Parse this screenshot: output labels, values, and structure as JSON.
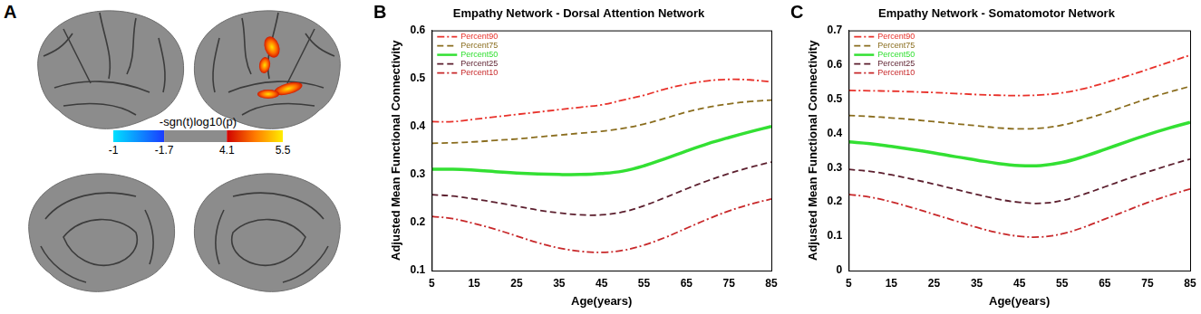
{
  "panel_labels": [
    "A",
    "B",
    "C"
  ],
  "chart_data": [
    {
      "type": "brain_map",
      "colorbar_label": "-sgn(t)log10(p)",
      "colorbar_ticks": [
        -1,
        -1.7,
        4.1,
        5.5
      ]
    },
    {
      "type": "line",
      "title": "Empathy Network - Dorsal Attention Network",
      "x_label": "Age(years)",
      "y_label": "Adjusted Mean Functional Connectivity",
      "x": [
        5,
        10,
        15,
        20,
        25,
        30,
        35,
        40,
        45,
        50,
        55,
        60,
        65,
        70,
        75,
        80,
        85
      ],
      "xlim": [
        5,
        85
      ],
      "xticks": [
        5,
        15,
        25,
        35,
        45,
        55,
        65,
        75,
        85
      ],
      "ylim": [
        0.1,
        0.6
      ],
      "yticks": [
        0.1,
        0.2,
        0.3,
        0.4,
        0.5,
        0.6
      ],
      "grid": false,
      "legend": "upper left",
      "series": [
        {
          "name": "Percent90",
          "color": "#e8312a",
          "line_style": "dashdot",
          "values": [
            0.41,
            0.41,
            0.415,
            0.42,
            0.425,
            0.43,
            0.435,
            0.44,
            0.445,
            0.455,
            0.465,
            0.478,
            0.488,
            0.495,
            0.498,
            0.497,
            0.493
          ]
        },
        {
          "name": "Percent75",
          "color": "#8a6d1e",
          "line_style": "dashed",
          "values": [
            0.365,
            0.366,
            0.368,
            0.371,
            0.374,
            0.378,
            0.382,
            0.386,
            0.39,
            0.396,
            0.405,
            0.417,
            0.43,
            0.44,
            0.447,
            0.452,
            0.455
          ]
        },
        {
          "name": "Percent50",
          "color": "#33e033",
          "line_style": "solid",
          "values": [
            0.311,
            0.311,
            0.309,
            0.306,
            0.303,
            0.301,
            0.3,
            0.3,
            0.302,
            0.307,
            0.318,
            0.333,
            0.349,
            0.364,
            0.377,
            0.389,
            0.4
          ]
        },
        {
          "name": "Percent25",
          "color": "#5c1f2e",
          "line_style": "dashed",
          "values": [
            0.258,
            0.255,
            0.249,
            0.242,
            0.234,
            0.226,
            0.22,
            0.216,
            0.216,
            0.222,
            0.235,
            0.252,
            0.27,
            0.287,
            0.302,
            0.315,
            0.326
          ]
        },
        {
          "name": "Percent10",
          "color": "#c8282a",
          "line_style": "dashdot",
          "values": [
            0.213,
            0.208,
            0.198,
            0.186,
            0.172,
            0.158,
            0.147,
            0.14,
            0.138,
            0.142,
            0.153,
            0.169,
            0.188,
            0.207,
            0.224,
            0.238,
            0.249
          ]
        }
      ]
    },
    {
      "type": "line",
      "title": "Empathy Network - Somatomotor Network",
      "x_label": "Age(years)",
      "y_label": "Adjusted Mean Functional Connectivity",
      "x": [
        5,
        10,
        15,
        20,
        25,
        30,
        35,
        40,
        45,
        50,
        55,
        60,
        65,
        70,
        75,
        80,
        85
      ],
      "xlim": [
        5,
        85
      ],
      "xticks": [
        5,
        15,
        25,
        35,
        45,
        55,
        65,
        75,
        85
      ],
      "ylim": [
        0,
        0.7
      ],
      "yticks": [
        0,
        0.1,
        0.2,
        0.3,
        0.4,
        0.5,
        0.6,
        0.7
      ],
      "grid": false,
      "legend": "upper left",
      "series": [
        {
          "name": "Percent90",
          "color": "#e8312a",
          "line_style": "dashdot",
          "values": [
            0.525,
            0.524,
            0.523,
            0.521,
            0.519,
            0.516,
            0.513,
            0.511,
            0.51,
            0.512,
            0.518,
            0.53,
            0.547,
            0.566,
            0.586,
            0.607,
            0.628
          ]
        },
        {
          "name": "Percent75",
          "color": "#8a6d1e",
          "line_style": "dashed",
          "values": [
            0.452,
            0.449,
            0.445,
            0.44,
            0.434,
            0.428,
            0.422,
            0.416,
            0.413,
            0.415,
            0.424,
            0.44,
            0.459,
            0.48,
            0.501,
            0.52,
            0.537
          ]
        },
        {
          "name": "Percent50",
          "color": "#33e033",
          "line_style": "solid",
          "values": [
            0.375,
            0.37,
            0.362,
            0.353,
            0.343,
            0.332,
            0.322,
            0.312,
            0.306,
            0.306,
            0.315,
            0.332,
            0.353,
            0.375,
            0.396,
            0.415,
            0.432
          ]
        },
        {
          "name": "Percent25",
          "color": "#5c1f2e",
          "line_style": "dashed",
          "values": [
            0.295,
            0.289,
            0.279,
            0.266,
            0.252,
            0.237,
            0.222,
            0.208,
            0.199,
            0.196,
            0.204,
            0.222,
            0.244,
            0.266,
            0.287,
            0.307,
            0.325
          ]
        },
        {
          "name": "Percent10",
          "color": "#c8282a",
          "line_style": "dashdot",
          "values": [
            0.222,
            0.214,
            0.2,
            0.183,
            0.164,
            0.145,
            0.126,
            0.11,
            0.1,
            0.098,
            0.107,
            0.126,
            0.15,
            0.174,
            0.198,
            0.219,
            0.238
          ]
        }
      ]
    }
  ]
}
